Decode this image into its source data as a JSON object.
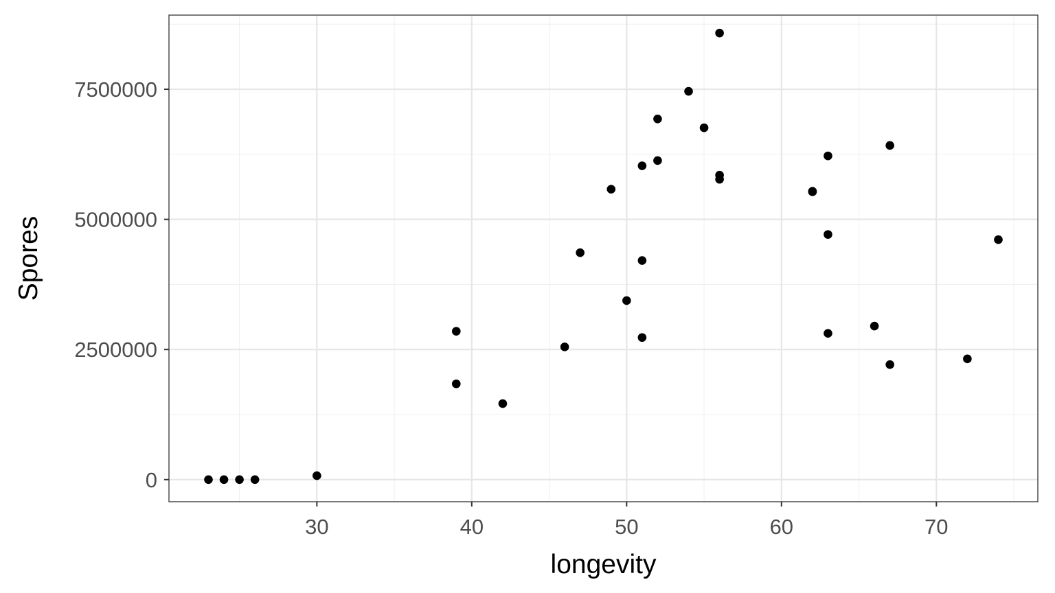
{
  "chart_data": {
    "type": "scatter",
    "xlabel": "longevity",
    "ylabel": "Spores",
    "xlim": [
      20.45,
      76.55
    ],
    "ylim": [
      -425000,
      8925000
    ],
    "x_ticks": [
      30,
      40,
      50,
      60,
      70
    ],
    "x_tick_labels": [
      "30",
      "40",
      "50",
      "60",
      "70"
    ],
    "y_ticks": [
      0,
      2500000,
      5000000,
      7500000
    ],
    "y_tick_labels": [
      "0",
      "2500000",
      "5000000",
      "7500000"
    ],
    "x_minor_ticks": [
      25,
      35,
      45,
      55,
      65,
      75
    ],
    "y_minor_ticks": [
      1250000,
      3750000,
      6250000,
      8750000
    ],
    "grid": true,
    "point_color": "#000000",
    "points": [
      {
        "x": 23,
        "y": 0
      },
      {
        "x": 24,
        "y": 0
      },
      {
        "x": 25,
        "y": 0
      },
      {
        "x": 26,
        "y": 0
      },
      {
        "x": 30,
        "y": 75000
      },
      {
        "x": 39,
        "y": 2850000
      },
      {
        "x": 39,
        "y": 1840000
      },
      {
        "x": 42,
        "y": 1460000
      },
      {
        "x": 46,
        "y": 2550000
      },
      {
        "x": 47,
        "y": 4360000
      },
      {
        "x": 49,
        "y": 5580000
      },
      {
        "x": 50,
        "y": 3440000
      },
      {
        "x": 51,
        "y": 6030000
      },
      {
        "x": 51,
        "y": 4210000
      },
      {
        "x": 51,
        "y": 2730000
      },
      {
        "x": 52,
        "y": 6930000
      },
      {
        "x": 52,
        "y": 6130000
      },
      {
        "x": 54,
        "y": 7460000
      },
      {
        "x": 55,
        "y": 6760000
      },
      {
        "x": 56,
        "y": 8580000
      },
      {
        "x": 56,
        "y": 5850000
      },
      {
        "x": 56,
        "y": 5770000
      },
      {
        "x": 62,
        "y": 5540000
      },
      {
        "x": 62,
        "y": 5530000
      },
      {
        "x": 63,
        "y": 6220000
      },
      {
        "x": 63,
        "y": 4710000
      },
      {
        "x": 63,
        "y": 2810000
      },
      {
        "x": 66,
        "y": 2950000
      },
      {
        "x": 67,
        "y": 6420000
      },
      {
        "x": 67,
        "y": 2210000
      },
      {
        "x": 72,
        "y": 2320000
      },
      {
        "x": 74,
        "y": 4610000
      }
    ]
  }
}
